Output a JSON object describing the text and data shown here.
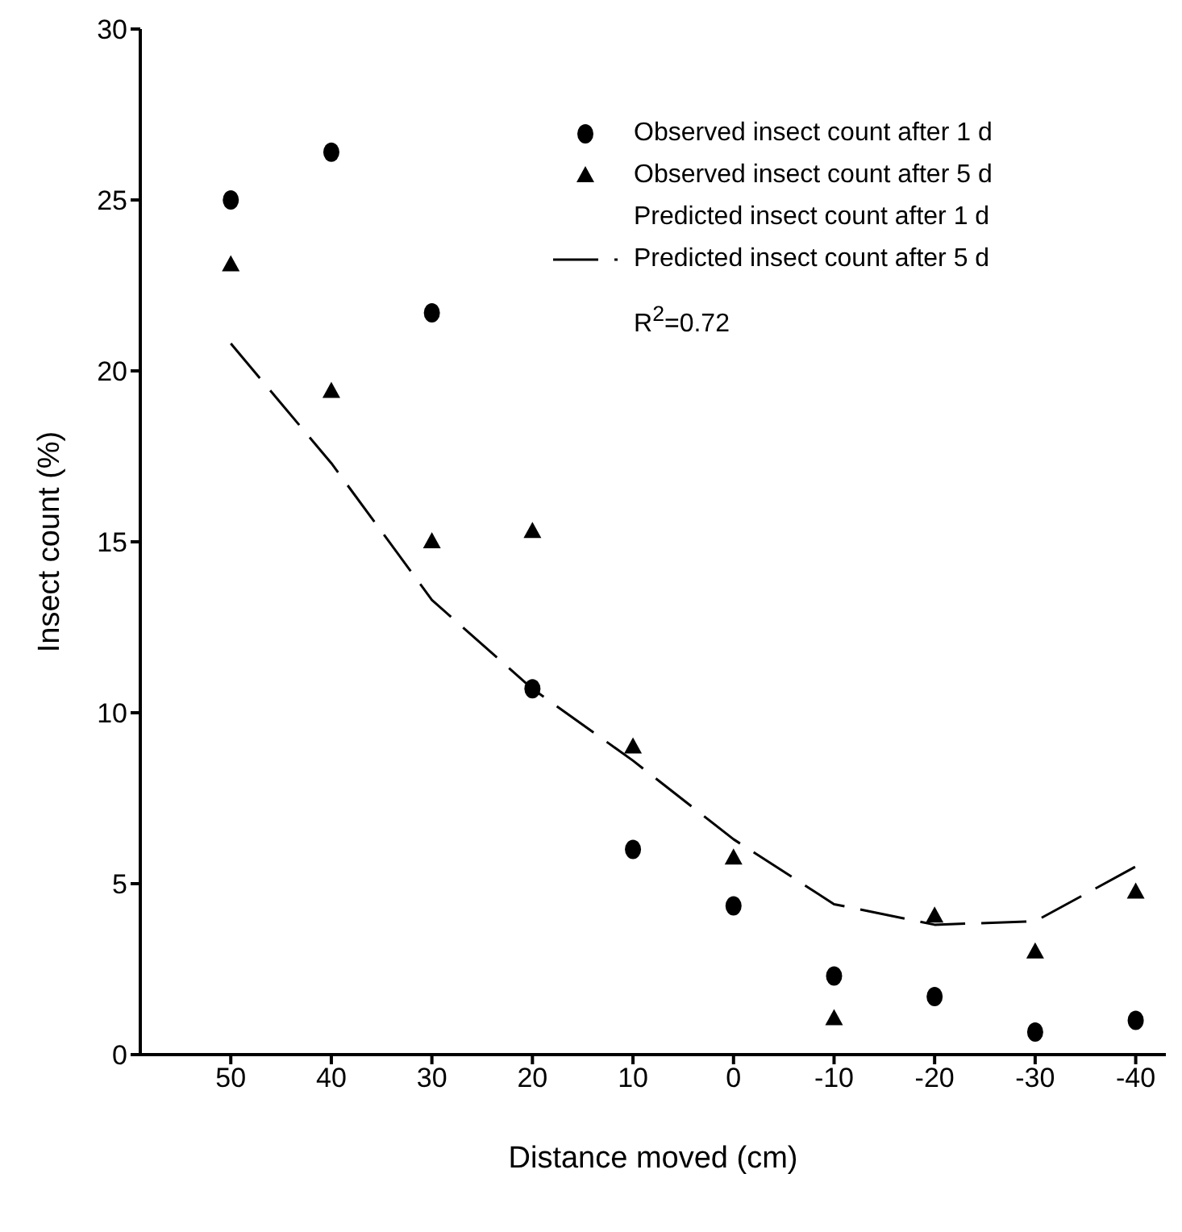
{
  "chart_data": {
    "type": "scatter",
    "xlabel": "Distance moved (cm)",
    "ylabel": "Insect count (%)",
    "x": [
      50,
      40,
      30,
      20,
      10,
      0,
      -10,
      -20,
      -30,
      -40
    ],
    "series": [
      {
        "name": "Observed insect count after 1 d",
        "color": "#000000",
        "marker": "circle",
        "values": [
          25.0,
          26.4,
          21.7,
          10.7,
          6.0,
          4.35,
          2.3,
          1.7,
          0.66,
          1.0
        ]
      },
      {
        "name": "Observed insect count  after 5 d",
        "color": "#000000",
        "marker": "triangle",
        "values": [
          23.1,
          19.4,
          15.0,
          15.3,
          9.0,
          5.75,
          1.05,
          4.05,
          3.0,
          4.75
        ]
      },
      {
        "name": "Predicted insect count after 5 d",
        "type": "line",
        "color": "#000000",
        "marker": "none",
        "line_style": "dashed",
        "x": [
          50,
          40,
          30,
          20,
          10,
          0,
          -10,
          -20,
          -30,
          -40
        ],
        "values": [
          20.8,
          17.3,
          13.3,
          10.7,
          8.6,
          6.3,
          4.4,
          3.8,
          3.9,
          5.5
        ]
      }
    ],
    "annotations": [
      "Predicted insect count after 1 d",
      "R$^{2}$=0.72"
    ],
    "xlim": [
      59,
      -43
    ],
    "xticks": [
      50,
      40,
      30,
      20,
      10,
      0,
      -10,
      -20,
      -30,
      -40
    ],
    "ylim": [
      0,
      30
    ],
    "yticks": [
      0,
      5,
      10,
      15,
      20,
      25,
      30
    ],
    "legend": "top right",
    "grid": false
  }
}
